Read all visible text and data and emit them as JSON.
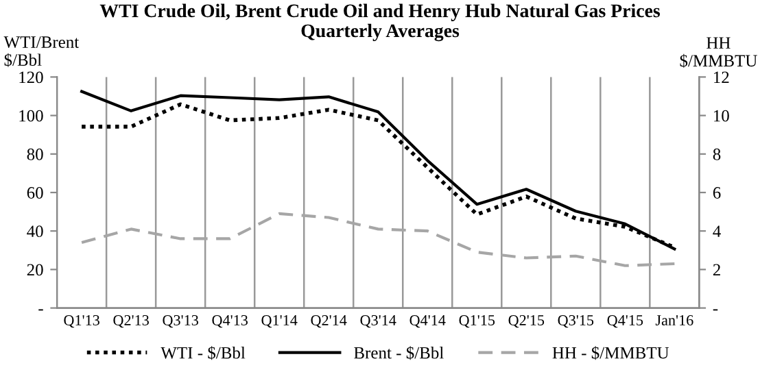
{
  "chart_data": {
    "type": "line",
    "title": "WTI Crude Oil, Brent Crude Oil and Henry Hub Natural Gas Prices\nQuarterly Averages",
    "ylabel": "WTI/Brent\n$/Bbl",
    "y2label": "HH\n$/MMBTU",
    "categories": [
      "Q1'13",
      "Q2'13",
      "Q3'13",
      "Q4'13",
      "Q1'14",
      "Q2'14",
      "Q3'14",
      "Q4'14",
      "Q1'15",
      "Q2'15",
      "Q3'15",
      "Q4'15",
      "Jan'16"
    ],
    "series": [
      {
        "name": "WTI - $/Bbl",
        "color": "#000000",
        "line_style": "dotted",
        "values": [
          94.2,
          94.2,
          105.8,
          97.5,
          98.7,
          103,
          97.5,
          73,
          48.6,
          57.9,
          46.5,
          42.2,
          31.5
        ]
      },
      {
        "name": "Brent - $/Bbl",
        "color": "#000000",
        "line_style": "solid",
        "values": [
          112.5,
          102.4,
          110.3,
          109.3,
          108.2,
          109.7,
          101.9,
          76.6,
          53.9,
          61.7,
          50.3,
          43.7,
          30.7
        ]
      },
      {
        "name": "HH - $/MMBTU",
        "color": "#a6a6a6",
        "line_style": "dashed",
        "axis": "y2",
        "values": [
          3.4,
          4.1,
          3.6,
          3.6,
          4.9,
          4.7,
          4.1,
          4.0,
          2.9,
          2.6,
          2.7,
          2.2,
          2.3
        ]
      }
    ],
    "ylim": [
      0,
      120
    ],
    "yticks": [
      {
        "value": 0,
        "label": "-"
      },
      20,
      40,
      60,
      80,
      100,
      120
    ],
    "y2lim": [
      0,
      12
    ],
    "y2ticks": [
      {
        "value": 0,
        "label": "-"
      },
      2,
      4,
      6,
      8,
      10,
      12
    ],
    "grid": "x",
    "legend": "bottom",
    "marker": "none"
  }
}
